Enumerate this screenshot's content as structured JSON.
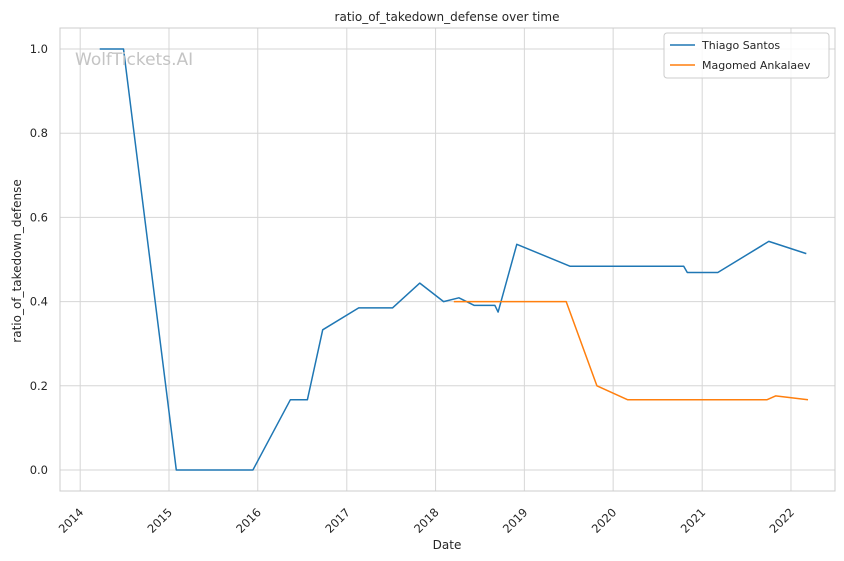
{
  "chart_data": {
    "type": "line",
    "title": "ratio_of_takedown_defense over time",
    "xlabel": "Date",
    "ylabel": "ratio_of_takedown_defense",
    "watermark": "WolfTickets.AI",
    "x_ticks": [
      "2014",
      "2015",
      "2016",
      "2017",
      "2018",
      "2019",
      "2020",
      "2021",
      "2022"
    ],
    "y_ticks": [
      "0.0",
      "0.2",
      "0.4",
      "0.6",
      "0.8",
      "1.0"
    ],
    "xlim": [
      "2013-10-10",
      "2022-07-01"
    ],
    "ylim": [
      -0.05,
      1.05
    ],
    "grid": true,
    "legend_position": "top-right",
    "series": [
      {
        "name": "Thiago Santos",
        "color": "#1f77b4",
        "x": [
          "2014-03-22",
          "2014-06-28",
          "2015-01-31",
          "2015-12-12",
          "2016-05-14",
          "2016-07-23",
          "2016-09-24",
          "2017-02-19",
          "2017-07-08",
          "2017-10-28",
          "2018-02-03",
          "2018-04-07",
          "2018-06-09",
          "2018-09-02",
          "2018-09-15",
          "2018-12-01",
          "2019-07-07",
          "2020-10-17",
          "2020-11-01",
          "2021-03-06",
          "2021-10-02",
          "2022-03-05"
        ],
        "values": [
          1.0,
          1.0,
          0.0,
          0.0,
          0.167,
          0.167,
          0.333,
          0.385,
          0.385,
          0.444,
          0.4,
          0.409,
          0.391,
          0.391,
          0.375,
          0.536,
          0.484,
          0.484,
          0.469,
          0.469,
          0.543,
          0.514
        ]
      },
      {
        "name": "Magomed Ankalaev",
        "color": "#ff7f0e",
        "x": [
          "2018-03-17",
          "2019-06-22",
          "2019-10-26",
          "2020-02-29",
          "2021-09-25",
          "2021-10-30",
          "2022-03-12"
        ],
        "values": [
          0.4,
          0.4,
          0.2,
          0.167,
          0.167,
          0.176,
          0.167
        ]
      }
    ]
  }
}
